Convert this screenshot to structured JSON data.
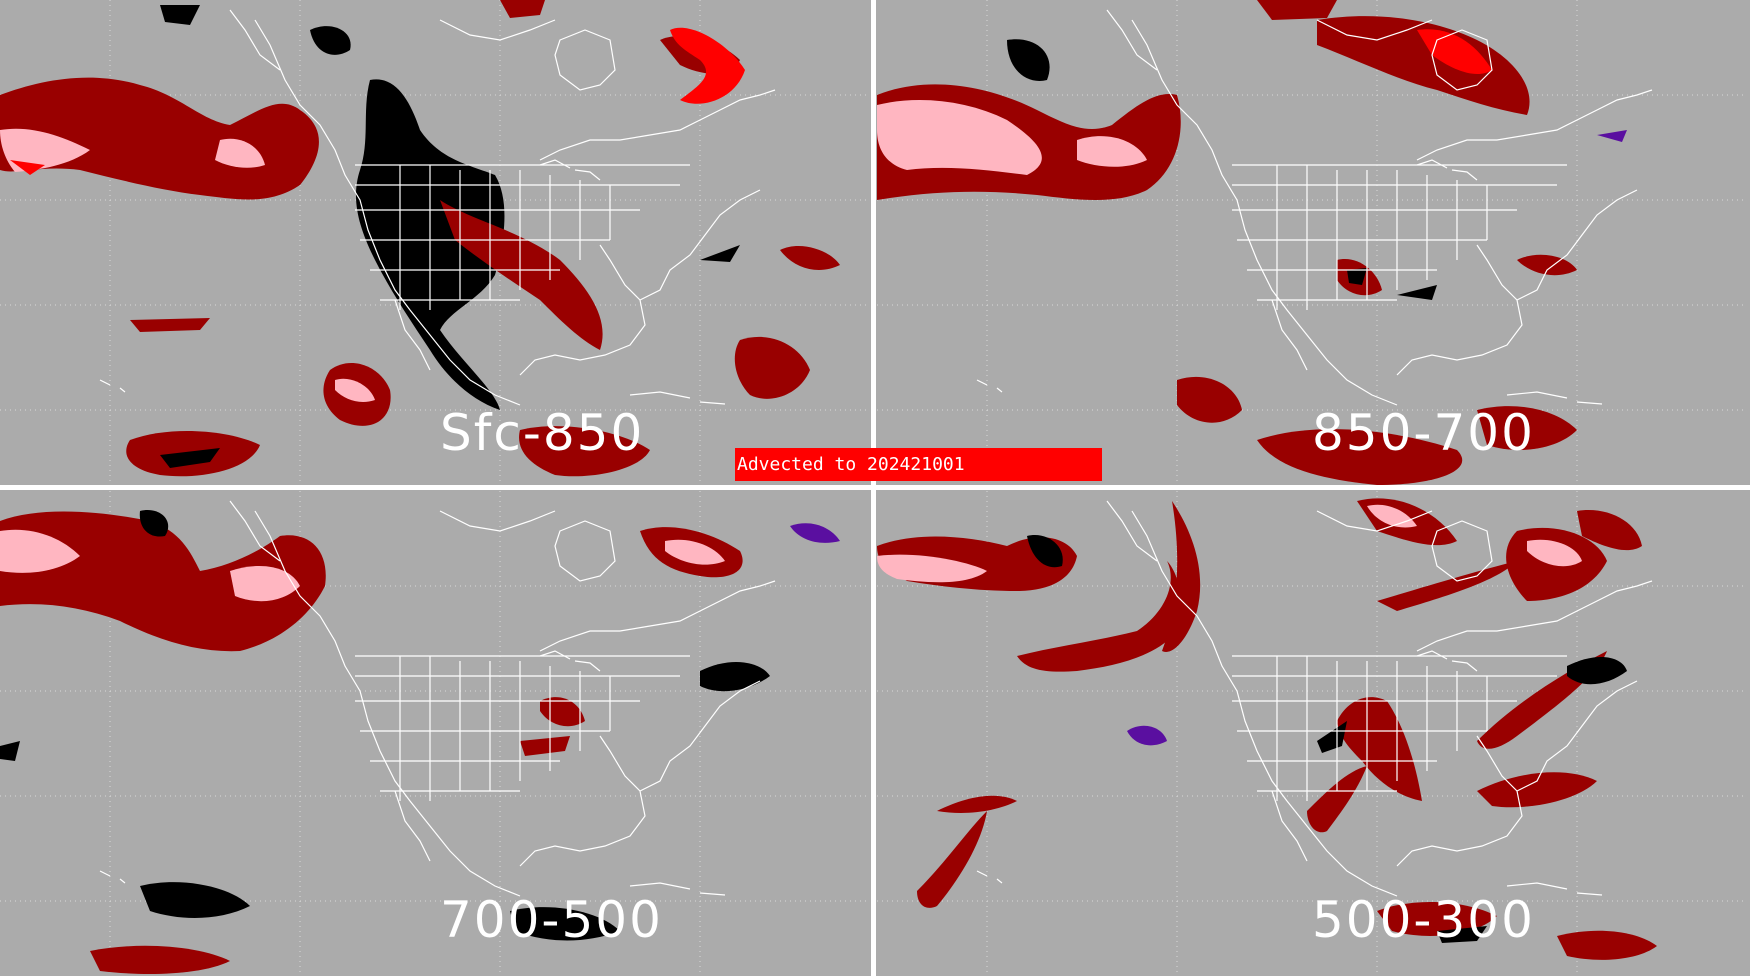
{
  "panels": [
    {
      "id": "sfc-850",
      "label": "Sfc-850"
    },
    {
      "id": "850-700",
      "label": "850-700"
    },
    {
      "id": "700-500",
      "label": "700-500"
    },
    {
      "id": "500-300",
      "label": "500-300"
    }
  ],
  "banner": {
    "text": "Advected to  202421001"
  },
  "colors": {
    "background": "#ababab",
    "dark_red": "#990000",
    "pink": "#ffb6c1",
    "bright_red": "#ff0000",
    "black": "#000000",
    "purple": "#5a0fa0",
    "outline": "#ffffff"
  }
}
